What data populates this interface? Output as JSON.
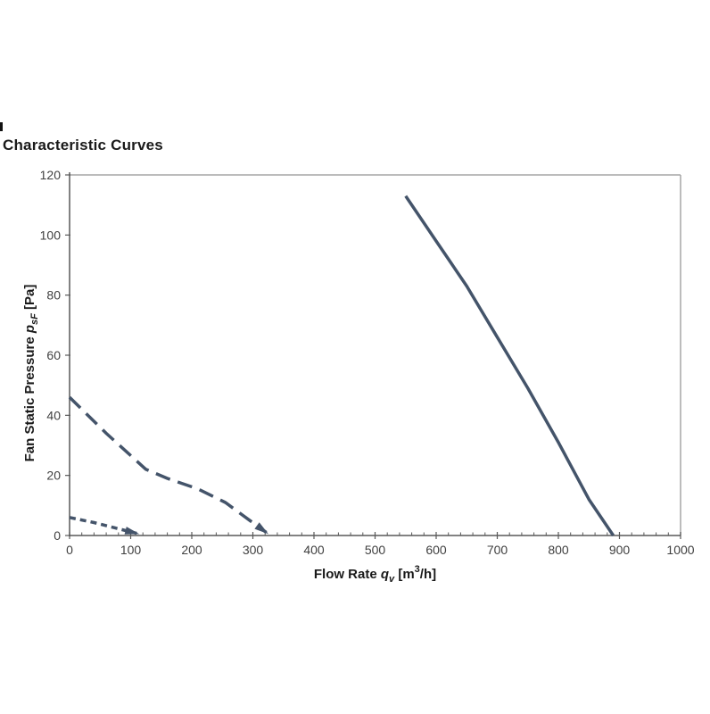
{
  "title": "Characteristic Curves",
  "colors": {
    "series_line": "#44546A",
    "axis_line": "#595959",
    "plot_border": "#A6A6A6",
    "tick_label": "#404040",
    "title_text": "#1A1A1A",
    "background": "#FFFFFF"
  },
  "chart_data": {
    "type": "line",
    "title": "Characteristic Curves",
    "xlabel": "Flow Rate qv [m3/h]",
    "ylabel": "Fan Static Pressure psF [Pa]",
    "xlabel_parts": [
      {
        "t": "Flow Rate ",
        "style": "normal"
      },
      {
        "t": "q",
        "style": "italic"
      },
      {
        "t": "v",
        "style": "italic-sub"
      },
      {
        "t": " [m",
        "style": "normal"
      },
      {
        "t": "3",
        "style": "sup"
      },
      {
        "t": "/h]",
        "style": "normal"
      }
    ],
    "ylabel_parts": [
      {
        "t": "Fan Static Pressure ",
        "style": "normal"
      },
      {
        "t": "p",
        "style": "italic"
      },
      {
        "t": "sF",
        "style": "italic-sub"
      },
      {
        "t": " [Pa]",
        "style": "normal"
      }
    ],
    "xlim": [
      0,
      1000
    ],
    "ylim": [
      0,
      120
    ],
    "x_ticks": [
      0,
      100,
      200,
      300,
      400,
      500,
      600,
      700,
      800,
      900,
      1000
    ],
    "x_minor_step": 20,
    "y_ticks": [
      0,
      20,
      40,
      60,
      80,
      100,
      120
    ],
    "grid": false,
    "legend": "none",
    "series": [
      {
        "name": "fan-curve-solid",
        "line_style": "solid",
        "arrow_end": false,
        "points": [
          [
            550,
            113
          ],
          [
            600,
            98
          ],
          [
            650,
            83
          ],
          [
            700,
            66
          ],
          [
            750,
            49
          ],
          [
            800,
            31
          ],
          [
            850,
            12
          ],
          [
            890,
            0
          ]
        ]
      },
      {
        "name": "fan-curve-long-dash",
        "line_style": "long-dash",
        "arrow_end": true,
        "points": [
          [
            0,
            46
          ],
          [
            60,
            34
          ],
          [
            125,
            22
          ],
          [
            160,
            19
          ],
          [
            210,
            15.5
          ],
          [
            255,
            11
          ],
          [
            295,
            5
          ],
          [
            322,
            1
          ]
        ]
      },
      {
        "name": "fan-curve-short-dash",
        "line_style": "short-dash",
        "arrow_end": true,
        "points": [
          [
            0,
            6
          ],
          [
            40,
            4.3
          ],
          [
            75,
            2.5
          ],
          [
            110,
            0.7
          ]
        ]
      }
    ]
  }
}
